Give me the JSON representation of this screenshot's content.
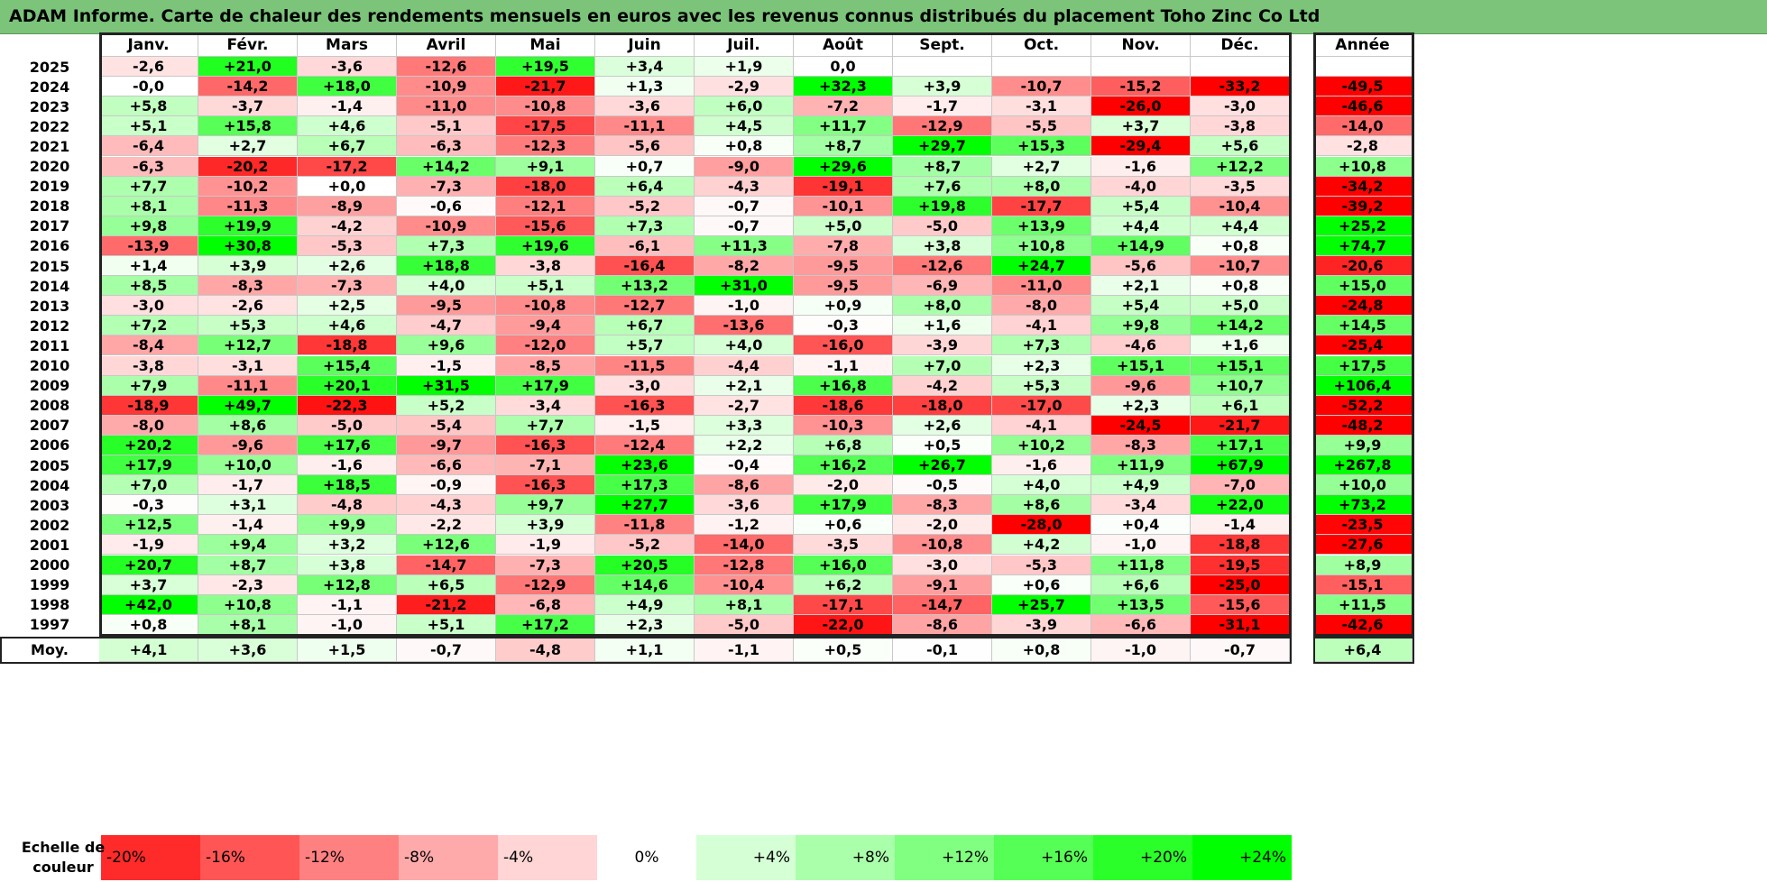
{
  "title": "ADAM Informe. Carte de chaleur des rendements mensuels en euros avec les revenus connus distribués du placement Toho Zinc Co Ltd",
  "chart_data": {
    "type": "heatmap",
    "title": "ADAM Informe. Carte de chaleur des rendements mensuels en euros avec les revenus connus distribués du placement Toho Zinc Co Ltd",
    "columns": [
      "Janv.",
      "Févr.",
      "Mars",
      "Avril",
      "Mai",
      "Juin",
      "Juil.",
      "Août",
      "Sept.",
      "Oct.",
      "Nov.",
      "Déc."
    ],
    "year_column": "Année",
    "rows": [
      {
        "year": "2025",
        "values": [
          "-2,6",
          "+21,0",
          "-3,6",
          "-12,6",
          "+19,5",
          "+3,4",
          "+1,9",
          "0,0",
          "",
          "",
          "",
          ""
        ],
        "annual": ""
      },
      {
        "year": "2024",
        "values": [
          "-0,0",
          "-14,2",
          "+18,0",
          "-10,9",
          "-21,7",
          "+1,3",
          "-2,9",
          "+32,3",
          "+3,9",
          "-10,7",
          "-15,2",
          "-33,2"
        ],
        "annual": "-49,5"
      },
      {
        "year": "2023",
        "values": [
          "+5,8",
          "-3,7",
          "-1,4",
          "-11,0",
          "-10,8",
          "-3,6",
          "+6,0",
          "-7,2",
          "-1,7",
          "-3,1",
          "-26,0",
          "-3,0"
        ],
        "annual": "-46,6"
      },
      {
        "year": "2022",
        "values": [
          "+5,1",
          "+15,8",
          "+4,6",
          "-5,1",
          "-17,5",
          "-11,1",
          "+4,5",
          "+11,7",
          "-12,9",
          "-5,5",
          "+3,7",
          "-3,8"
        ],
        "annual": "-14,0"
      },
      {
        "year": "2021",
        "values": [
          "-6,4",
          "+2,7",
          "+6,7",
          "-6,3",
          "-12,3",
          "-5,6",
          "+0,8",
          "+8,7",
          "+29,7",
          "+15,3",
          "-29,4",
          "+5,6"
        ],
        "annual": "-2,8"
      },
      {
        "year": "2020",
        "values": [
          "-6,3",
          "-20,2",
          "-17,2",
          "+14,2",
          "+9,1",
          "+0,7",
          "-9,0",
          "+29,6",
          "+8,7",
          "+2,7",
          "-1,6",
          "+12,2"
        ],
        "annual": "+10,8"
      },
      {
        "year": "2019",
        "values": [
          "+7,7",
          "-10,2",
          "+0,0",
          "-7,3",
          "-18,0",
          "+6,4",
          "-4,3",
          "-19,1",
          "+7,6",
          "+8,0",
          "-4,0",
          "-3,5"
        ],
        "annual": "-34,2"
      },
      {
        "year": "2018",
        "values": [
          "+8,1",
          "-11,3",
          "-8,9",
          "-0,6",
          "-12,1",
          "-5,2",
          "-0,7",
          "-10,1",
          "+19,8",
          "-17,7",
          "+5,4",
          "-10,4"
        ],
        "annual": "-39,2"
      },
      {
        "year": "2017",
        "values": [
          "+9,8",
          "+19,9",
          "-4,2",
          "-10,9",
          "-15,6",
          "+7,3",
          "-0,7",
          "+5,0",
          "-5,0",
          "+13,9",
          "+4,4",
          "+4,4"
        ],
        "annual": "+25,2"
      },
      {
        "year": "2016",
        "values": [
          "-13,9",
          "+30,8",
          "-5,3",
          "+7,3",
          "+19,6",
          "-6,1",
          "+11,3",
          "-7,8",
          "+3,8",
          "+10,8",
          "+14,9",
          "+0,8"
        ],
        "annual": "+74,7"
      },
      {
        "year": "2015",
        "values": [
          "+1,4",
          "+3,9",
          "+2,6",
          "+18,8",
          "-3,8",
          "-16,4",
          "-8,2",
          "-9,5",
          "-12,6",
          "+24,7",
          "-5,6",
          "-10,7"
        ],
        "annual": "-20,6"
      },
      {
        "year": "2014",
        "values": [
          "+8,5",
          "-8,3",
          "-7,3",
          "+4,0",
          "+5,1",
          "+13,2",
          "+31,0",
          "-9,5",
          "-6,9",
          "-11,0",
          "+2,1",
          "+0,8"
        ],
        "annual": "+15,0"
      },
      {
        "year": "2013",
        "values": [
          "-3,0",
          "-2,6",
          "+2,5",
          "-9,5",
          "-10,8",
          "-12,7",
          "-1,0",
          "+0,9",
          "+8,0",
          "-8,0",
          "+5,4",
          "+5,0"
        ],
        "annual": "-24,8"
      },
      {
        "year": "2012",
        "values": [
          "+7,2",
          "+5,3",
          "+4,6",
          "-4,7",
          "-9,4",
          "+6,7",
          "-13,6",
          "-0,3",
          "+1,6",
          "-4,1",
          "+9,8",
          "+14,2"
        ],
        "annual": "+14,5"
      },
      {
        "year": "2011",
        "values": [
          "-8,4",
          "+12,7",
          "-18,8",
          "+9,6",
          "-12,0",
          "+5,7",
          "+4,0",
          "-16,0",
          "-3,9",
          "+7,3",
          "-4,6",
          "+1,6"
        ],
        "annual": "-25,4"
      },
      {
        "year": "2010",
        "values": [
          "-3,8",
          "-3,1",
          "+15,4",
          "-1,5",
          "-8,5",
          "-11,5",
          "-4,4",
          "-1,1",
          "+7,0",
          "+2,3",
          "+15,1",
          "+15,1"
        ],
        "annual": "+17,5"
      },
      {
        "year": "2009",
        "values": [
          "+7,9",
          "-11,1",
          "+20,1",
          "+31,5",
          "+17,9",
          "-3,0",
          "+2,1",
          "+16,8",
          "-4,2",
          "+5,3",
          "-9,6",
          "+10,7"
        ],
        "annual": "+106,4"
      },
      {
        "year": "2008",
        "values": [
          "-18,9",
          "+49,7",
          "-22,3",
          "+5,2",
          "-3,4",
          "-16,3",
          "-2,7",
          "-18,6",
          "-18,0",
          "-17,0",
          "+2,3",
          "+6,1"
        ],
        "annual": "-52,2"
      },
      {
        "year": "2007",
        "values": [
          "-8,0",
          "+8,6",
          "-5,0",
          "-5,4",
          "+7,7",
          "-1,5",
          "+3,3",
          "-10,3",
          "+2,6",
          "-4,1",
          "-24,5",
          "-21,7"
        ],
        "annual": "-48,2"
      },
      {
        "year": "2006",
        "values": [
          "+20,2",
          "-9,6",
          "+17,6",
          "-9,7",
          "-16,3",
          "-12,4",
          "+2,2",
          "+6,8",
          "+0,5",
          "+10,2",
          "-8,3",
          "+17,1"
        ],
        "annual": "+9,9"
      },
      {
        "year": "2005",
        "values": [
          "+17,9",
          "+10,0",
          "-1,6",
          "-6,6",
          "-7,1",
          "+23,6",
          "-0,4",
          "+16,2",
          "+26,7",
          "-1,6",
          "+11,9",
          "+67,9"
        ],
        "annual": "+267,8"
      },
      {
        "year": "2004",
        "values": [
          "+7,0",
          "-1,7",
          "+18,5",
          "-0,9",
          "-16,3",
          "+17,3",
          "-8,6",
          "-2,0",
          "-0,5",
          "+4,0",
          "+4,9",
          "-7,0"
        ],
        "annual": "+10,0"
      },
      {
        "year": "2003",
        "values": [
          "-0,3",
          "+3,1",
          "-4,8",
          "-4,3",
          "+9,7",
          "+27,7",
          "-3,6",
          "+17,9",
          "-8,3",
          "+8,6",
          "-3,4",
          "+22,0"
        ],
        "annual": "+73,2"
      },
      {
        "year": "2002",
        "values": [
          "+12,5",
          "-1,4",
          "+9,9",
          "-2,2",
          "+3,9",
          "-11,8",
          "-1,2",
          "+0,6",
          "-2,0",
          "-28,0",
          "+0,4",
          "-1,4"
        ],
        "annual": "-23,5"
      },
      {
        "year": "2001",
        "values": [
          "-1,9",
          "+9,4",
          "+3,2",
          "+12,6",
          "-1,9",
          "-5,2",
          "-14,0",
          "-3,5",
          "-10,8",
          "+4,2",
          "-1,0",
          "-18,8"
        ],
        "annual": "-27,6"
      },
      {
        "year": "2000",
        "values": [
          "+20,7",
          "+8,7",
          "+3,8",
          "-14,7",
          "-7,3",
          "+20,5",
          "-12,8",
          "+16,0",
          "-3,0",
          "-5,3",
          "+11,8",
          "-19,5"
        ],
        "annual": "+8,9"
      },
      {
        "year": "1999",
        "values": [
          "+3,7",
          "-2,3",
          "+12,8",
          "+6,5",
          "-12,9",
          "+14,6",
          "-10,4",
          "+6,2",
          "-9,1",
          "+0,6",
          "+6,6",
          "-25,0"
        ],
        "annual": "-15,1"
      },
      {
        "year": "1998",
        "values": [
          "+42,0",
          "+10,8",
          "-1,1",
          "-21,2",
          "-6,8",
          "+4,9",
          "+8,1",
          "-17,1",
          "-14,7",
          "+25,7",
          "+13,5",
          "-15,6"
        ],
        "annual": "+11,5"
      },
      {
        "year": "1997",
        "values": [
          "+0,8",
          "+8,1",
          "-1,0",
          "+5,1",
          "+17,2",
          "+2,3",
          "-5,0",
          "-22,0",
          "-8,6",
          "-3,9",
          "-6,6",
          "-31,1"
        ],
        "annual": "-42,6"
      }
    ],
    "average": {
      "label": "Moy.",
      "values": [
        "+4,1",
        "+3,6",
        "+1,5",
        "-0,7",
        "-4,8",
        "+1,1",
        "-1,1",
        "+0,5",
        "-0,1",
        "+0,8",
        "-1,0",
        "-0,7"
      ],
      "annual": "+6,4"
    },
    "scale": {
      "label": "Echelle de couleur",
      "steps": [
        "-20%",
        "-16%",
        "-12%",
        "-8%",
        "-4%",
        "0%",
        "+4%",
        "+8%",
        "+12%",
        "+16%",
        "+20%",
        "+24%"
      ],
      "step_values": [
        -20,
        -16,
        -12,
        -8,
        -4,
        0,
        4,
        8,
        12,
        16,
        20,
        24
      ]
    },
    "colors": {
      "negative": "#ff0000",
      "neutral": "#ffffff",
      "positive": "#00ff00"
    }
  }
}
